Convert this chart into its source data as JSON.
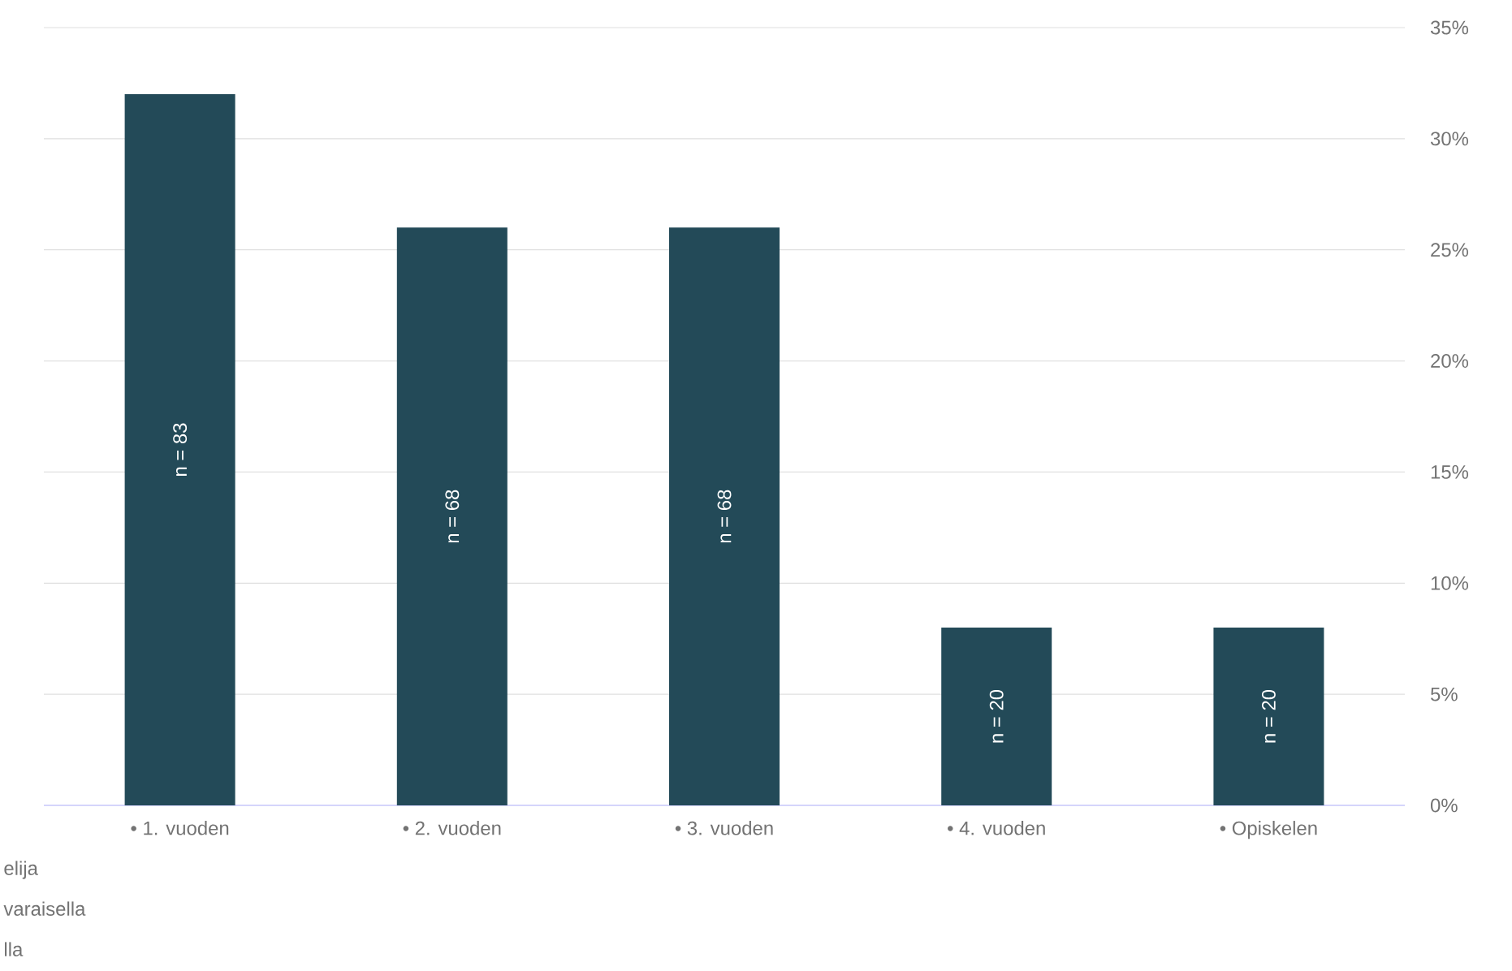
{
  "chart_data": {
    "type": "bar",
    "categories": [
      "• 1. vuoden",
      "• 2. vuoden",
      "• 3. vuoden",
      "• 4. vuoden",
      "• Opiskelen"
    ],
    "values": [
      32,
      26,
      26,
      8,
      8
    ],
    "color": "#234a58",
    "ylim": [
      0,
      35
    ],
    "yticks": [
      {
        "value": 0,
        "label": "0%"
      },
      {
        "value": 5,
        "label": "5%"
      },
      {
        "value": 10,
        "label": "10%"
      },
      {
        "value": 15,
        "label": "15%"
      },
      {
        "value": 20,
        "label": "20%"
      },
      {
        "value": 25,
        "label": "25%"
      },
      {
        "value": 30,
        "label": "30%"
      },
      {
        "value": 35,
        "label": "35%"
      }
    ],
    "grid": "y",
    "annotations": [
      "n = 83",
      "n = 68",
      "n = 68",
      "n = 20",
      "n = 20",
      "elija",
      "varaisella",
      "lla"
    ]
  }
}
